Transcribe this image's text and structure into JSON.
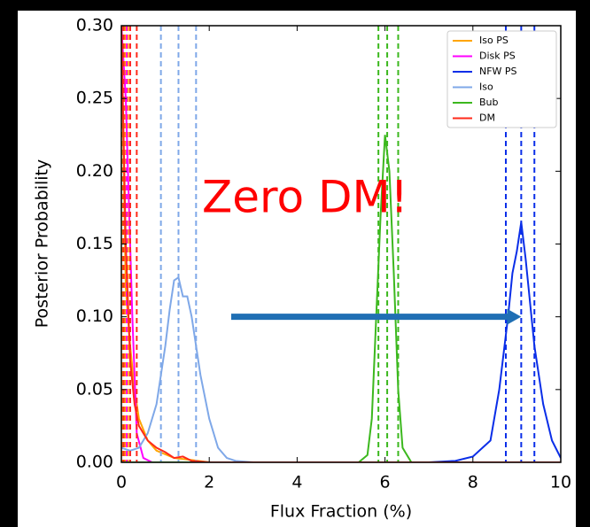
{
  "chart_data": {
    "type": "line",
    "xlabel": "Flux Fraction (%)",
    "ylabel": "Posterior Probability",
    "annotation": "Zero DM!",
    "arrow": {
      "from": [
        2.5,
        0.1
      ],
      "to": [
        9.1,
        0.1
      ],
      "color": "#1f6fb4"
    },
    "xlim": [
      0,
      10
    ],
    "ylim": [
      0,
      0.3
    ],
    "xticks": [
      0,
      2,
      4,
      6,
      8,
      10
    ],
    "yticks": [
      {
        "value": 0,
        "label": "0.00"
      },
      {
        "value": 0.05,
        "label": "0.05"
      },
      {
        "value": 0.1,
        "label": "0.10"
      },
      {
        "value": 0.15,
        "label": "0.15"
      },
      {
        "value": 0.2,
        "label": "0.20"
      },
      {
        "value": 0.25,
        "label": "0.25"
      },
      {
        "value": 0.3,
        "label": "0.30"
      }
    ],
    "grid": false,
    "legend": "upper right",
    "series": [
      {
        "name": "Iso PS",
        "color": "#ffa500",
        "x": [
          0,
          0.1,
          0.2,
          0.3,
          0.4,
          0.6,
          0.8,
          1.2,
          1.5,
          2,
          10
        ],
        "values": [
          0.3,
          0.12,
          0.08,
          0.05,
          0.03,
          0.015,
          0.008,
          0.003,
          0.002,
          0,
          0
        ],
        "quantiles": [
          0.03,
          0.08,
          0.15
        ]
      },
      {
        "name": "Disk PS",
        "color": "#ff00ff",
        "x": [
          0,
          0.1,
          0.15,
          0.25,
          0.35,
          0.5,
          0.7,
          10
        ],
        "values": [
          0.3,
          0.25,
          0.2,
          0.1,
          0.02,
          0.003,
          0,
          0
        ],
        "quantiles": [
          0.05,
          0.12,
          0.2
        ]
      },
      {
        "name": "NFW PS",
        "color": "#0a2ee8",
        "x": [
          0,
          7,
          7.6,
          8,
          8.4,
          8.6,
          8.8,
          8.9,
          9,
          9.1,
          9.2,
          9.4,
          9.6,
          9.8,
          10
        ],
        "values": [
          0,
          0,
          0.001,
          0.004,
          0.015,
          0.05,
          0.1,
          0.13,
          0.145,
          0.165,
          0.14,
          0.08,
          0.04,
          0.015,
          0.003
        ],
        "quantiles": [
          8.75,
          9.1,
          9.4
        ]
      },
      {
        "name": "Iso",
        "color": "#7fa8e8",
        "x": [
          0,
          0.2,
          0.4,
          0.6,
          0.8,
          1,
          1.1,
          1.2,
          1.3,
          1.4,
          1.5,
          1.6,
          1.8,
          2,
          2.2,
          2.4,
          2.6,
          3,
          10
        ],
        "values": [
          0.01,
          0.008,
          0.01,
          0.02,
          0.04,
          0.08,
          0.105,
          0.125,
          0.127,
          0.114,
          0.114,
          0.1,
          0.06,
          0.03,
          0.01,
          0.003,
          0.001,
          0,
          0
        ],
        "quantiles": [
          0.9,
          1.3,
          1.7
        ]
      },
      {
        "name": "Bub",
        "color": "#3cb81e",
        "x": [
          0,
          5.4,
          5.6,
          5.7,
          5.8,
          5.9,
          6,
          6.1,
          6.2,
          6.3,
          6.4,
          6.6,
          10
        ],
        "values": [
          0,
          0,
          0.005,
          0.03,
          0.1,
          0.17,
          0.225,
          0.2,
          0.13,
          0.05,
          0.01,
          0,
          0
        ],
        "quantiles": [
          5.85,
          6.05,
          6.3
        ]
      },
      {
        "name": "DM",
        "color": "#ff2a1a",
        "x": [
          0,
          0.1,
          0.2,
          0.3,
          0.4,
          0.6,
          0.8,
          1,
          1.2,
          1.4,
          1.6,
          2,
          10
        ],
        "values": [
          0.3,
          0.15,
          0.07,
          0.04,
          0.025,
          0.015,
          0.01,
          0.007,
          0.003,
          0.004,
          0.001,
          0,
          0
        ],
        "quantiles": [
          0.05,
          0.2,
          0.35
        ]
      }
    ]
  }
}
